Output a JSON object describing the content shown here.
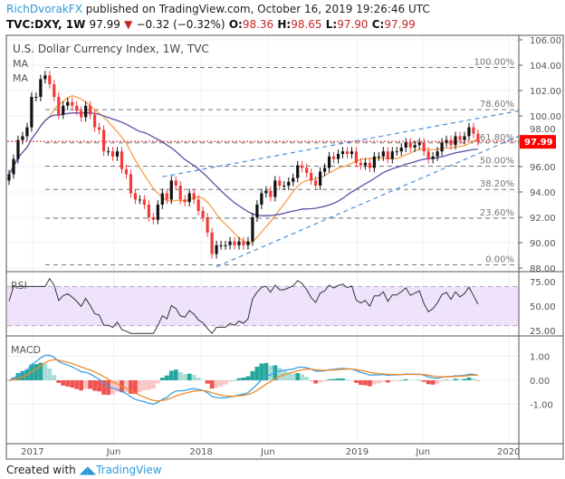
{
  "header": {
    "author": "RichDvorakFX",
    "published": "published on TradingView.com, October 16, 2019 19:26:46 UTC",
    "symbol": "TVC:DXY, 1W",
    "last": "97.99",
    "change": "−0.32 (−0.32%)",
    "o_label": "O:",
    "o": "98.36",
    "h_label": "H:",
    "h": "98.65",
    "l_label": "L:",
    "l": "97.90",
    "c_label": "C:",
    "c": "97.99"
  },
  "footer": {
    "created": "Created with",
    "brand": "TradingView"
  },
  "colors": {
    "up": "#111111",
    "down": "#f23b3b",
    "ma_fast": "#f5a04a",
    "ma_slow": "#5b4fa8",
    "channel": "#4a90d9",
    "price_line": "#e02020",
    "rsi": "#333333",
    "rsi_band": "#efe3fb",
    "macd": "#3aa0e8",
    "signal": "#f0892a",
    "hist_up": "#26a69a",
    "hist_up_fade": "#a8dcd5",
    "hist_down": "#ef5350",
    "hist_down_fade": "#f9c4c4"
  },
  "chart_data": {
    "type": "candlestick",
    "title": "U.S. Dollar Currency Index, 1W, TVC",
    "indicator_labels": [
      "MA",
      "MA"
    ],
    "ylim": [
      88,
      106
    ],
    "yticks": [
      "106.00",
      "104.00",
      "102.00",
      "100.00",
      "98.00",
      "96.00",
      "94.00",
      "92.00",
      "90.00",
      "88.00"
    ],
    "ytick_values": [
      106,
      104,
      102,
      100,
      98,
      96,
      94,
      92,
      90,
      88
    ],
    "last_price": 97.99,
    "last_price_label": "97.99",
    "closes": [
      95.4,
      96.6,
      98.1,
      98.4,
      99.1,
      101.5,
      101.5,
      102.9,
      103.2,
      102.5,
      101.5,
      100.1,
      100.8,
      101.1,
      100.8,
      100.4,
      99.9,
      100.8,
      100.1,
      99.1,
      98.9,
      97.2,
      97.2,
      96.8,
      97.2,
      95.8,
      95.4,
      93.9,
      93.4,
      93.4,
      93.0,
      92.0,
      91.8,
      93.0,
      93.9,
      93.4,
      94.9,
      94.5,
      93.4,
      93.2,
      93.9,
      93.4,
      92.5,
      92.0,
      90.8,
      89.1,
      89.8,
      89.8,
      89.8,
      90.1,
      89.8,
      90.1,
      89.8,
      90.1,
      92.0,
      93.0,
      93.9,
      94.1,
      93.6,
      94.9,
      94.5,
      94.5,
      94.8,
      95.1,
      96.1,
      95.9,
      95.5,
      94.9,
      94.5,
      95.6,
      95.9,
      96.8,
      96.6,
      97.0,
      97.2,
      97.0,
      97.2,
      96.3,
      96.1,
      96.3,
      95.9,
      96.8,
      96.8,
      97.2,
      96.6,
      97.2,
      97.2,
      97.5,
      97.9,
      97.5,
      97.7,
      97.9,
      97.2,
      96.6,
      96.8,
      97.2,
      97.9,
      98.1,
      97.7,
      98.4,
      98.1,
      98.4,
      99.1,
      98.6,
      97.99
    ],
    "moving_averages": [
      {
        "name": "MA",
        "period": 10
      },
      {
        "name": "MA",
        "period": 30
      }
    ],
    "fibonacci": {
      "high": 103.82,
      "low": 88.25,
      "levels": [
        {
          "label": "100.00%",
          "ratio": 1.0
        },
        {
          "label": "78.60%",
          "ratio": 0.786
        },
        {
          "label": "61.80%",
          "ratio": 0.618
        },
        {
          "label": "50.00%",
          "ratio": 0.5
        },
        {
          "label": "38.20%",
          "ratio": 0.382
        },
        {
          "label": "23.60%",
          "ratio": 0.236
        },
        {
          "label": "0.00%",
          "ratio": 0.0
        }
      ]
    },
    "channel": {
      "upper": [
        [
          34,
          95.2
        ],
        [
          113,
          100.4
        ]
      ],
      "lower": [
        [
          46,
          88.1
        ],
        [
          113,
          98.4
        ]
      ]
    },
    "xticks": [
      {
        "label": "2017",
        "index": 5.2
      },
      {
        "label": "Jun",
        "index": 23.2
      },
      {
        "label": "2018",
        "index": 42.6
      },
      {
        "label": "Jun",
        "index": 57.4
      },
      {
        "label": "2019",
        "index": 77.2
      },
      {
        "label": "Jun",
        "index": 91.8
      },
      {
        "label": "2020",
        "index": 110.8
      }
    ],
    "rsi": {
      "label": "RSI",
      "period": 9,
      "ylim": [
        20,
        80
      ],
      "yticks": [
        "75.00",
        "50.00",
        "25.00"
      ],
      "ytick_values": [
        75,
        50,
        25
      ],
      "band": [
        30,
        70
      ]
    },
    "macd": {
      "label": "MACD",
      "fast": 8,
      "slow": 17,
      "signal": 6,
      "ylim": [
        -2.2,
        1.9
      ],
      "yticks": [
        "1.00",
        "0.00",
        "-1.00"
      ],
      "ytick_values": [
        1,
        0,
        -1
      ]
    }
  }
}
